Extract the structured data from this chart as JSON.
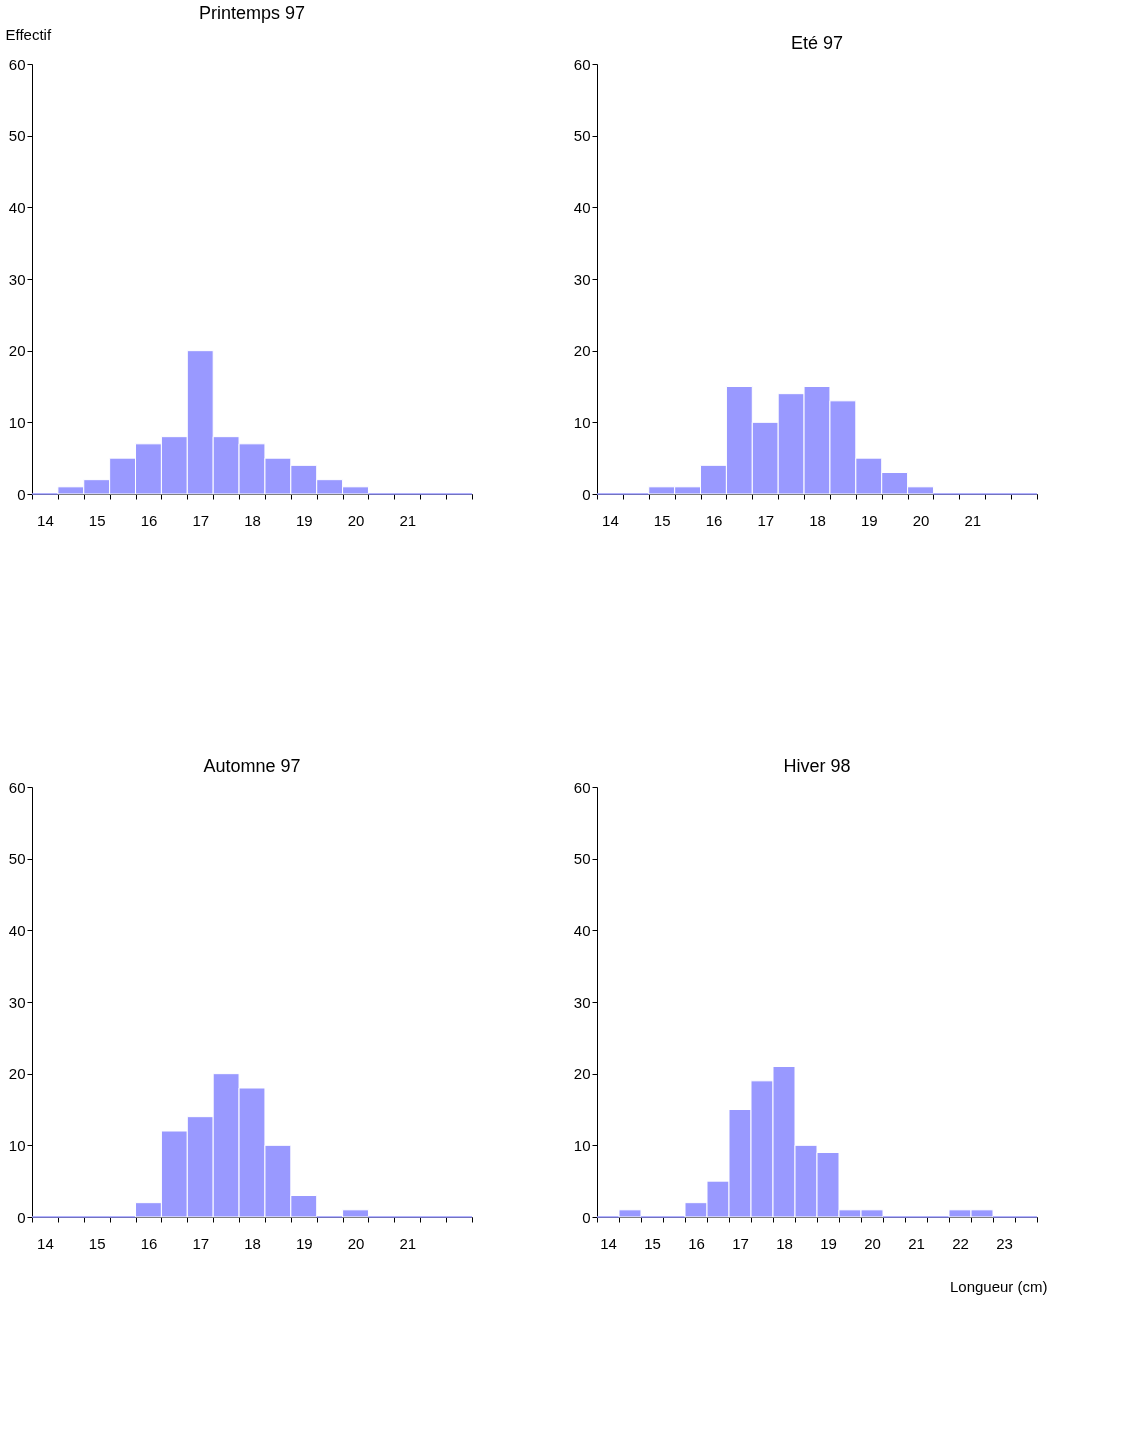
{
  "chart_data": [
    {
      "type": "bar",
      "title": "Printemps 97",
      "ylabel": "Effectif",
      "categories": [
        "14",
        null,
        "15",
        null,
        "16",
        null,
        "17",
        null,
        "18",
        null,
        "19",
        null,
        "20",
        null,
        "21",
        null,
        null
      ],
      "values": [
        0,
        1,
        2,
        5,
        7,
        8,
        20,
        8,
        7,
        5,
        4,
        2,
        1,
        0,
        0,
        0,
        0
      ],
      "color": "#9999ff",
      "ylim": [
        0,
        60
      ],
      "yticks": [
        0,
        10,
        20,
        30,
        40,
        50,
        60
      ]
    },
    {
      "type": "bar",
      "title": "Eté 97",
      "categories": [
        "14",
        null,
        "15",
        null,
        "16",
        null,
        "17",
        null,
        "18",
        null,
        "19",
        null,
        "20",
        null,
        "21",
        null,
        null
      ],
      "values": [
        0,
        0,
        1,
        1,
        4,
        15,
        10,
        14,
        15,
        13,
        5,
        3,
        1,
        0,
        0,
        0,
        0
      ],
      "color": "#9999ff",
      "ylim": [
        0,
        60
      ],
      "yticks": [
        0,
        10,
        20,
        30,
        40,
        50,
        60
      ]
    },
    {
      "type": "bar",
      "title": "Automne 97",
      "categories": [
        "14",
        null,
        "15",
        null,
        "16",
        null,
        "17",
        null,
        "18",
        null,
        "19",
        null,
        "20",
        null,
        "21",
        null,
        null
      ],
      "values": [
        0,
        0,
        0,
        0,
        2,
        12,
        14,
        20,
        18,
        10,
        3,
        0,
        1,
        0,
        0,
        0,
        0
      ],
      "color": "#9999ff",
      "ylim": [
        0,
        60
      ],
      "yticks": [
        0,
        10,
        20,
        30,
        40,
        50,
        60
      ]
    },
    {
      "type": "bar",
      "title": "Hiver 98",
      "xlabel": "Longueur (cm)",
      "categories": [
        "14",
        null,
        "15",
        null,
        "16",
        null,
        "17",
        null,
        "18",
        null,
        "19",
        null,
        "20",
        null,
        "21",
        null,
        "22",
        null,
        "23",
        null
      ],
      "values": [
        0,
        1,
        0,
        0,
        2,
        5,
        15,
        19,
        21,
        10,
        9,
        1,
        1,
        0,
        0,
        0,
        1,
        1,
        0,
        0
      ],
      "color": "#9999ff",
      "ylim": [
        0,
        60
      ],
      "yticks": [
        0,
        10,
        20,
        30,
        40,
        50,
        60
      ]
    }
  ]
}
